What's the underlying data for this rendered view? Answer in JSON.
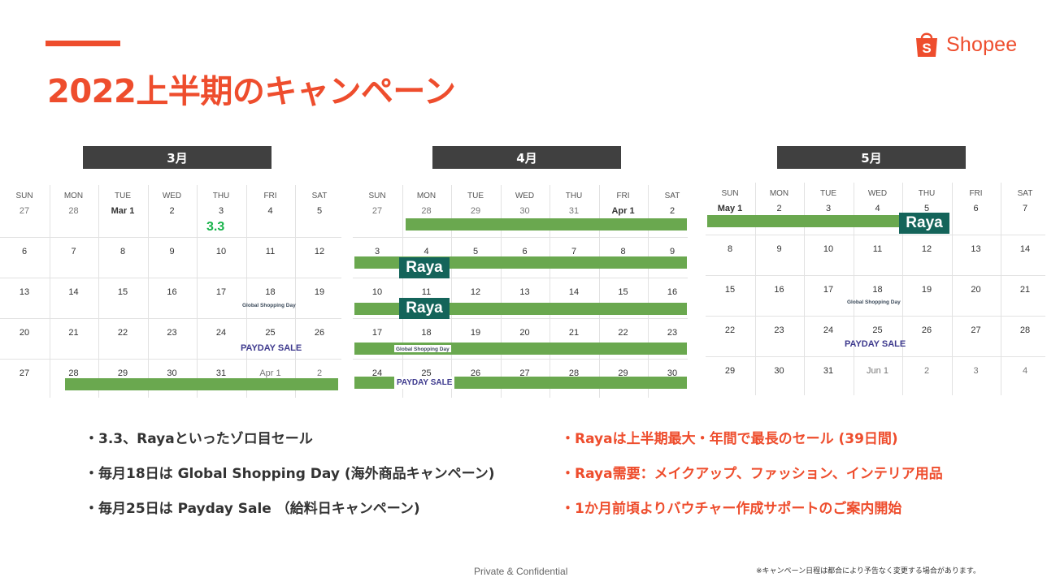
{
  "slide": {
    "title": "2022上半期のキャンペーン",
    "footer_center": "Private & Confidential",
    "footer_note": "※キャンペーン日程は都合により予告なく変更する場合があります。"
  },
  "logo": {
    "text": "Shopee",
    "icon": "shopping-bag-icon",
    "color": "#ee4d2d"
  },
  "colors": {
    "accent": "#ee4d2d",
    "header_bg": "#404040",
    "campaign_bar": "#6aa84f",
    "raya_badge": "#14645a",
    "payday_text": "#3e3a8e",
    "event_33": "#18b34a"
  },
  "weekdays": [
    "SUN",
    "MON",
    "TUE",
    "WED",
    "THU",
    "FRI",
    "SAT"
  ],
  "months": [
    {
      "label": "3月",
      "rows": [
        [
          "27",
          "28",
          "Mar 1",
          "2",
          "3",
          "4",
          "5"
        ],
        [
          "6",
          "7",
          "8",
          "9",
          "10",
          "11",
          "12"
        ],
        [
          "13",
          "14",
          "15",
          "16",
          "17",
          "18",
          "19"
        ],
        [
          "20",
          "21",
          "22",
          "23",
          "24",
          "25",
          "26"
        ],
        [
          "27",
          "28",
          "29",
          "30",
          "31",
          "Apr 1",
          "2"
        ]
      ],
      "event_33": "3.3",
      "event_gsd": "Global Shopping Day",
      "event_payday": "PAYDAY SALE"
    },
    {
      "label": "4月",
      "rows": [
        [
          "27",
          "28",
          "29",
          "30",
          "31",
          "Apr 1",
          "2"
        ],
        [
          "3",
          "4",
          "5",
          "6",
          "7",
          "8",
          "9"
        ],
        [
          "10",
          "11",
          "12",
          "13",
          "14",
          "15",
          "16"
        ],
        [
          "17",
          "18",
          "19",
          "20",
          "21",
          "22",
          "23"
        ],
        [
          "24",
          "25",
          "26",
          "27",
          "28",
          "29",
          "30"
        ]
      ],
      "raya_label": "Raya",
      "event_gsd": "Global Shopping Day",
      "event_payday": "PAYDAY SALE"
    },
    {
      "label": "5月",
      "rows": [
        [
          "May 1",
          "2",
          "3",
          "4",
          "5",
          "6",
          "7"
        ],
        [
          "8",
          "9",
          "10",
          "11",
          "12",
          "13",
          "14"
        ],
        [
          "15",
          "16",
          "17",
          "18",
          "19",
          "20",
          "21"
        ],
        [
          "22",
          "23",
          "24",
          "25",
          "26",
          "27",
          "28"
        ],
        [
          "29",
          "30",
          "31",
          "Jun 1",
          "2",
          "3",
          "4"
        ]
      ],
      "raya_label": "Raya",
      "event_gsd": "Global Shopping Day",
      "event_payday": "PAYDAY SALE"
    }
  ],
  "bullets_left": [
    "・3.3、Rayaといったゾロ目セール",
    "・毎月18日は Global Shopping Day (海外商品キャンペーン)",
    "・毎月25日は Payday Sale （給料日キャンペーン)"
  ],
  "bullets_right": [
    "・Rayaは上半期最大・年間で最長のセール (39日間)",
    "・Raya需要：メイクアップ、ファッション、インテリア用品",
    "・1か月前頃よりバウチャー作成サポートのご案内開始"
  ]
}
